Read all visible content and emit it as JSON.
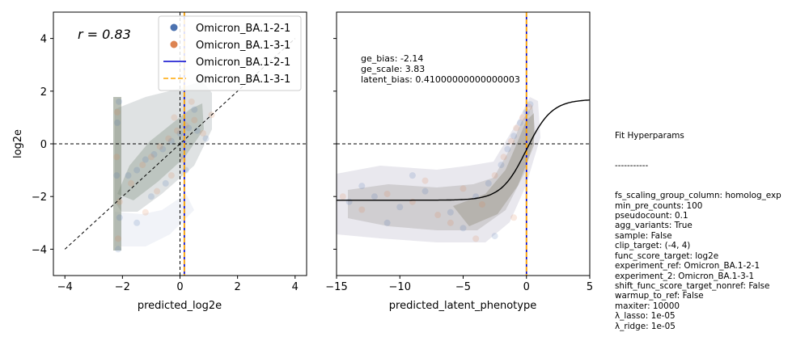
{
  "colors": {
    "variant_1": "#4C72B0",
    "variant_2": "#DD8452",
    "line_1": "#0000cc",
    "line_2": "#FFA500"
  },
  "chart_data": [
    {
      "type": "scatter",
      "title": "",
      "xlabel": "predicted_log2e",
      "ylabel": "log2e",
      "xlim": [
        -4.4,
        4.4
      ],
      "ylim": [
        -5,
        5
      ],
      "xticks": [
        "−4",
        "−2",
        "0",
        "2",
        "4"
      ],
      "yticks": [
        "−4",
        "−2",
        "0",
        "2",
        "4"
      ],
      "annotation": "r = 0.83",
      "reference_lines": {
        "horizontal_y": 0,
        "vertical_x": 0,
        "diagonal": [
          [
            -4,
            -4
          ],
          [
            4,
            4
          ]
        ]
      },
      "vertical_lines": [
        {
          "name": "Omicron_BA.1-2-1",
          "x": 0.15,
          "style": "solid"
        },
        {
          "name": "Omicron_BA.1-3-1",
          "x": 0.15,
          "style": "dashed"
        }
      ],
      "legend": {
        "placement": "top-right",
        "entries": [
          {
            "label": "Omicron_BA.1-2-1",
            "kind": "marker",
            "color": "#4C72B0"
          },
          {
            "label": "Omicron_BA.1-3-1",
            "kind": "marker",
            "color": "#DD8452"
          },
          {
            "label": "Omicron_BA.1-2-1",
            "kind": "line",
            "color": "#0000cc"
          },
          {
            "label": "Omicron_BA.1-3-1",
            "kind": "dashed-line",
            "color": "#FFA500"
          }
        ]
      },
      "series": [
        {
          "name": "Omicron_BA.1-2-1",
          "points": [
            [
              -2.15,
              -4.0
            ],
            [
              -2.1,
              -2.8
            ],
            [
              -2.2,
              -1.2
            ],
            [
              -2.18,
              0.8
            ],
            [
              -2.12,
              1.6
            ],
            [
              -1.8,
              -1.2
            ],
            [
              -1.5,
              -1.0
            ],
            [
              -1.2,
              -0.6
            ],
            [
              -0.9,
              -0.4
            ],
            [
              -0.6,
              -0.2
            ],
            [
              -0.3,
              0.1
            ],
            [
              0.0,
              0.4
            ],
            [
              0.3,
              0.6
            ],
            [
              0.6,
              0.5
            ],
            [
              0.9,
              0.2
            ],
            [
              -1.0,
              -2.0
            ],
            [
              -0.5,
              -1.5
            ],
            [
              0.2,
              -1.0
            ],
            [
              -1.5,
              -3.0
            ],
            [
              0.5,
              1.3
            ]
          ]
        },
        {
          "name": "Omicron_BA.1-3-1",
          "points": [
            [
              -2.15,
              -3.6
            ],
            [
              -2.1,
              -2.2
            ],
            [
              -2.2,
              -0.5
            ],
            [
              -2.18,
              1.2
            ],
            [
              -1.7,
              -1.5
            ],
            [
              -1.3,
              -0.8
            ],
            [
              -1.0,
              -0.5
            ],
            [
              -0.7,
              -0.1
            ],
            [
              -0.4,
              0.2
            ],
            [
              -0.1,
              0.5
            ],
            [
              0.2,
              0.7
            ],
            [
              0.5,
              0.9
            ],
            [
              0.8,
              0.4
            ],
            [
              -0.8,
              -1.8
            ],
            [
              -0.3,
              -1.2
            ],
            [
              0.1,
              -0.6
            ],
            [
              -1.2,
              -2.6
            ],
            [
              0.4,
              1.6
            ],
            [
              -0.2,
              1.0
            ],
            [
              1.1,
              1.1
            ]
          ]
        }
      ]
    },
    {
      "type": "scatter",
      "title": "",
      "xlabel": "predicted_latent_phenotype",
      "ylabel": "",
      "xlim": [
        -15,
        5
      ],
      "ylim": [
        -5,
        5
      ],
      "xticks": [
        "−15",
        "−10",
        "−5",
        "0",
        "5"
      ],
      "reference_lines": {
        "horizontal_y": 0,
        "vertical_x": 0
      },
      "vertical_lines": [
        {
          "name": "Omicron_BA.1-2-1",
          "x": 0.0,
          "style": "solid"
        },
        {
          "name": "Omicron_BA.1-3-1",
          "x": 0.0,
          "style": "dashed"
        }
      ],
      "annotations": [
        "ge_bias: -2.14",
        "ge_scale: 3.83",
        "latent_bias: 0.41000000000000003"
      ],
      "fit_curve": {
        "type": "sigmoid",
        "bias": -2.14,
        "scale": 3.83
      },
      "series": [
        {
          "name": "Omicron_BA.1-2-1",
          "points": [
            [
              -14,
              -2.2
            ],
            [
              -12,
              -2.0
            ],
            [
              -10,
              -2.4
            ],
            [
              -8,
              -1.8
            ],
            [
              -6,
              -2.6
            ],
            [
              -4,
              -2.0
            ],
            [
              -3,
              -1.5
            ],
            [
              -2,
              -0.8
            ],
            [
              -1.5,
              -0.2
            ],
            [
              -1,
              0.3
            ],
            [
              -0.5,
              0.8
            ],
            [
              0,
              1.2
            ],
            [
              0.3,
              1.5
            ],
            [
              -9,
              -1.2
            ],
            [
              -11,
              -3.0
            ],
            [
              -5,
              -3.2
            ],
            [
              -2.5,
              -3.5
            ],
            [
              -13,
              -1.6
            ]
          ]
        },
        {
          "name": "Omicron_BA.1-3-1",
          "points": [
            [
              -13,
              -2.5
            ],
            [
              -11,
              -1.9
            ],
            [
              -9,
              -2.2
            ],
            [
              -7,
              -2.7
            ],
            [
              -5,
              -1.7
            ],
            [
              -3.5,
              -2.3
            ],
            [
              -2.5,
              -1.2
            ],
            [
              -1.8,
              -0.5
            ],
            [
              -1.2,
              0.1
            ],
            [
              -0.8,
              0.6
            ],
            [
              -0.3,
              1.0
            ],
            [
              0.2,
              1.4
            ],
            [
              -6,
              -3.0
            ],
            [
              -4,
              -3.6
            ],
            [
              -14.5,
              -2.0
            ],
            [
              -8,
              -1.4
            ],
            [
              -1,
              -2.8
            ]
          ]
        }
      ]
    }
  ],
  "hyperparams": {
    "title": "Fit Hyperparams",
    "separator": "-----------",
    "lines": [
      "fs_scaling_group_column: homolog_exp",
      "min_pre_counts: 100",
      "pseudocount: 0.1",
      "agg_variants: True",
      "sample: False",
      "clip_target: (-4, 4)",
      "func_score_target: log2e",
      "experiment_ref: Omicron_BA.1-2-1",
      "experiment_2: Omicron_BA.1-3-1",
      "shift_func_score_target_nonref: False",
      "warmup_to_ref: False",
      "maxiter: 10000",
      "λ_lasso: 1e-05",
      "λ_ridge: 1e-05"
    ]
  }
}
